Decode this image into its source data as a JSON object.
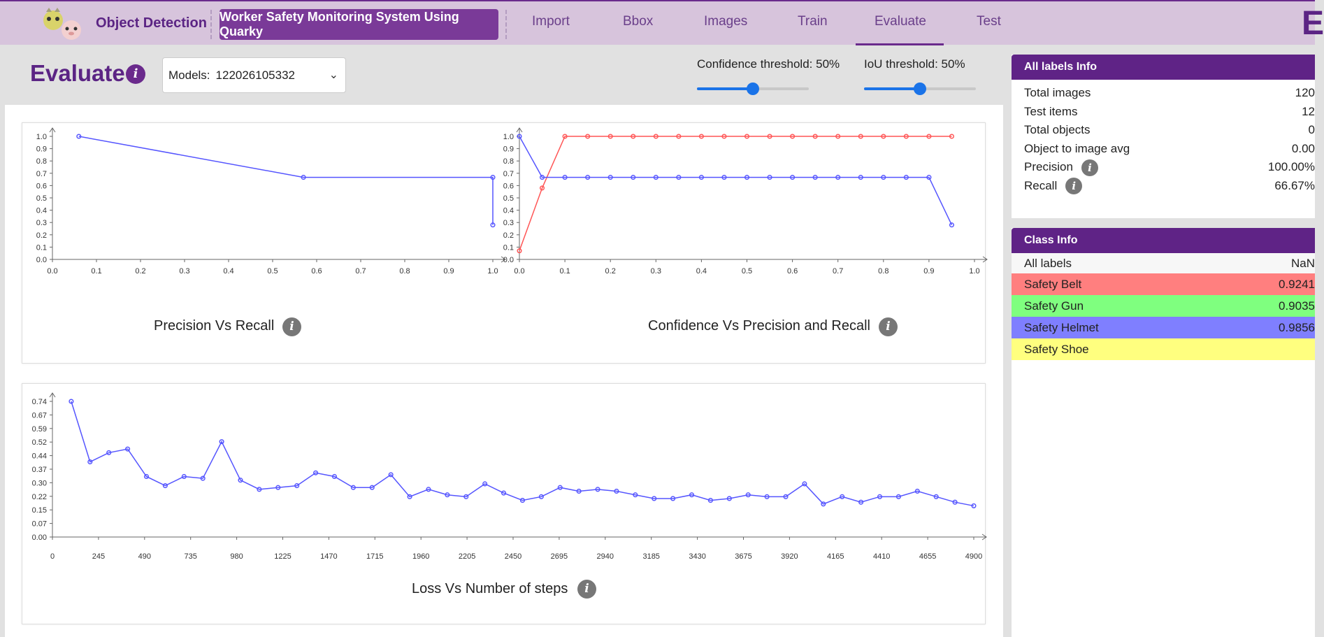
{
  "nav": {
    "app_title": "Object Detection",
    "project_name": "Worker Safety Monitoring System Using Quarky",
    "tabs": [
      "Import",
      "Bbox",
      "Images",
      "Train",
      "Evaluate",
      "Test"
    ],
    "active_tab": "Evaluate",
    "corner_letter": "E"
  },
  "header": {
    "title": "Evaluate",
    "model_label": "Models:",
    "model_value": "122026105332",
    "confidence_label": "Confidence threshold: 50%",
    "confidence_value": 0.5,
    "iou_label": "IoU threshold: 50%",
    "iou_value": 0.5
  },
  "chart_data": [
    {
      "type": "line",
      "title": "Precision Vs Recall",
      "xlabel": "",
      "ylabel": "",
      "xlim": [
        0,
        1
      ],
      "ylim": [
        0,
        1
      ],
      "xticks": [
        "0.0",
        "0.1",
        "0.2",
        "0.3",
        "0.4",
        "0.5",
        "0.6",
        "0.7",
        "0.8",
        "0.9",
        "1.0"
      ],
      "yticks": [
        "0.0",
        "0.1",
        "0.2",
        "0.3",
        "0.4",
        "0.5",
        "0.6",
        "0.7",
        "0.8",
        "0.9",
        "1.0"
      ],
      "series": [
        {
          "color": "#5555ff",
          "x": [
            0.06,
            0.57,
            1.0,
            1.0
          ],
          "y": [
            1.0,
            0.667,
            0.667,
            0.28
          ]
        }
      ]
    },
    {
      "type": "line",
      "title": "Confidence Vs Precision and Recall",
      "xlabel": "",
      "ylabel": "",
      "xlim": [
        0,
        1
      ],
      "ylim": [
        0,
        1
      ],
      "xticks": [
        "0.0",
        "0.1",
        "0.2",
        "0.3",
        "0.4",
        "0.5",
        "0.6",
        "0.7",
        "0.8",
        "0.9",
        "1.0"
      ],
      "yticks": [
        "0.0",
        "0.1",
        "0.2",
        "0.3",
        "0.4",
        "0.5",
        "0.6",
        "0.7",
        "0.8",
        "0.9",
        "1.0"
      ],
      "series": [
        {
          "color": "#ff5555",
          "x": [
            0.0,
            0.05,
            0.1,
            0.15,
            0.2,
            0.25,
            0.3,
            0.35,
            0.4,
            0.45,
            0.5,
            0.55,
            0.6,
            0.65,
            0.7,
            0.75,
            0.8,
            0.85,
            0.9,
            0.95
          ],
          "y": [
            0.07,
            0.58,
            1.0,
            1.0,
            1.0,
            1.0,
            1.0,
            1.0,
            1.0,
            1.0,
            1.0,
            1.0,
            1.0,
            1.0,
            1.0,
            1.0,
            1.0,
            1.0,
            1.0,
            1.0
          ]
        },
        {
          "color": "#5555ff",
          "x": [
            0.0,
            0.05,
            0.1,
            0.15,
            0.2,
            0.25,
            0.3,
            0.35,
            0.4,
            0.45,
            0.5,
            0.55,
            0.6,
            0.65,
            0.7,
            0.75,
            0.8,
            0.85,
            0.9,
            0.95
          ],
          "y": [
            1.0,
            0.667,
            0.667,
            0.667,
            0.667,
            0.667,
            0.667,
            0.667,
            0.667,
            0.667,
            0.667,
            0.667,
            0.667,
            0.667,
            0.667,
            0.667,
            0.667,
            0.667,
            0.667,
            0.28
          ]
        }
      ]
    },
    {
      "type": "line",
      "title": "Loss Vs Number of steps",
      "xlabel": "",
      "ylabel": "",
      "xlim": [
        0,
        4900
      ],
      "ylim": [
        0,
        0.74
      ],
      "xticks": [
        "0",
        "245",
        "490",
        "735",
        "980",
        "1225",
        "1470",
        "1715",
        "1960",
        "2205",
        "2450",
        "2695",
        "2940",
        "3185",
        "3430",
        "3675",
        "3920",
        "4165",
        "4410",
        "4655",
        "4900"
      ],
      "yticks": [
        "0.00",
        "0.07",
        "0.15",
        "0.22",
        "0.30",
        "0.37",
        "0.44",
        "0.52",
        "0.59",
        "0.67",
        "0.74"
      ],
      "series": [
        {
          "color": "#5555ff",
          "x": [
            100,
            200,
            300,
            400,
            500,
            600,
            700,
            800,
            900,
            1000,
            1100,
            1200,
            1300,
            1400,
            1500,
            1600,
            1700,
            1800,
            1900,
            2000,
            2100,
            2200,
            2300,
            2400,
            2500,
            2600,
            2700,
            2800,
            2900,
            3000,
            3100,
            3200,
            3300,
            3400,
            3500,
            3600,
            3700,
            3800,
            3900,
            4000,
            4100,
            4200,
            4300,
            4400,
            4500,
            4600,
            4700,
            4800,
            4900
          ],
          "y": [
            0.74,
            0.41,
            0.46,
            0.48,
            0.33,
            0.28,
            0.33,
            0.32,
            0.52,
            0.31,
            0.26,
            0.27,
            0.28,
            0.35,
            0.33,
            0.27,
            0.27,
            0.34,
            0.22,
            0.26,
            0.23,
            0.22,
            0.29,
            0.24,
            0.2,
            0.22,
            0.27,
            0.25,
            0.26,
            0.25,
            0.23,
            0.21,
            0.21,
            0.23,
            0.2,
            0.21,
            0.23,
            0.22,
            0.22,
            0.29,
            0.18,
            0.22,
            0.19,
            0.22,
            0.22,
            0.25,
            0.22,
            0.19,
            0.17
          ]
        }
      ]
    }
  ],
  "all_labels_info": {
    "title": "All labels Info",
    "rows": [
      {
        "label": "Total images",
        "value": "120"
      },
      {
        "label": "Test items",
        "value": "12"
      },
      {
        "label": "Total objects",
        "value": "0"
      },
      {
        "label": "Object to image avg",
        "value": "0.00"
      },
      {
        "label": "Precision",
        "value": "100.00%"
      },
      {
        "label": "Recall",
        "value": "66.67%"
      }
    ]
  },
  "class_info": {
    "title": "Class Info",
    "rows": [
      {
        "label": "All labels",
        "value": "NaN",
        "color": "#f7f7f7"
      },
      {
        "label": "Safety Belt",
        "value": "0.9241",
        "color": "#ff7f7f"
      },
      {
        "label": "Safety Gun",
        "value": "0.9035",
        "color": "#7fff7f"
      },
      {
        "label": "Safety Helmet",
        "value": "0.9856",
        "color": "#7f7fff"
      },
      {
        "label": "Safety Shoe",
        "value": "",
        "color": "#ffff7f"
      }
    ]
  },
  "info_icon_glyph": "i"
}
